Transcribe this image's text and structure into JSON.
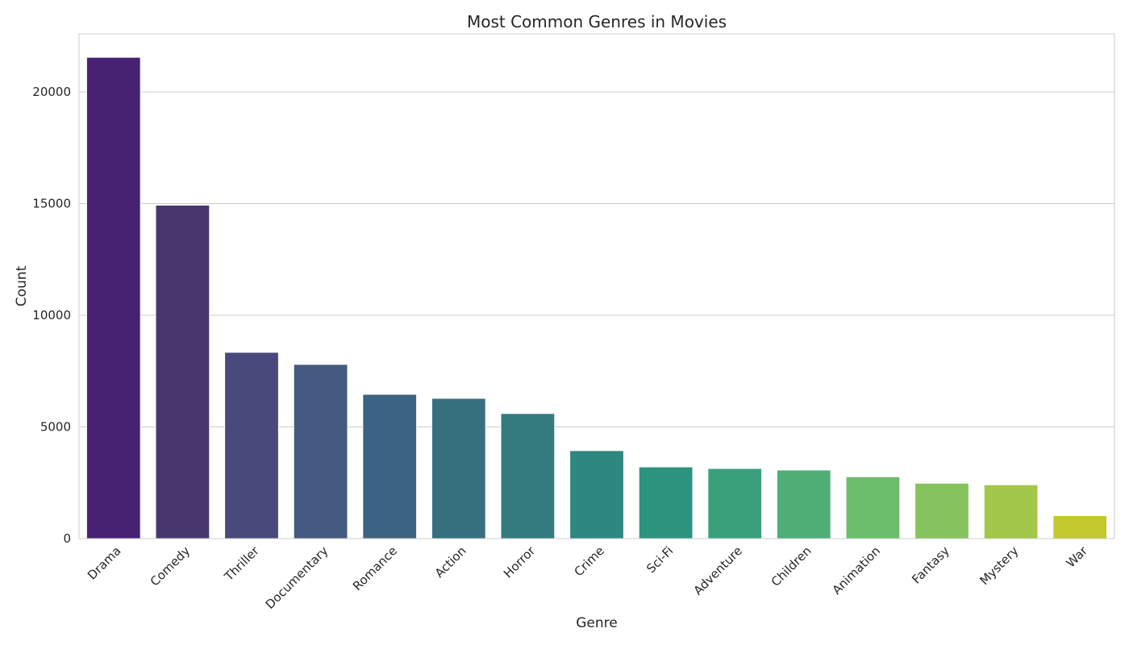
{
  "chart_data": {
    "type": "bar",
    "title": "Most Common Genres in Movies",
    "xlabel": "Genre",
    "ylabel": "Count",
    "ylim": [
      0,
      22600
    ],
    "yticks": [
      0,
      5000,
      10000,
      15000,
      20000
    ],
    "grid": true,
    "categories": [
      "Drama",
      "Comedy",
      "Thriller",
      "Documentary",
      "Romance",
      "Action",
      "Horror",
      "Crime",
      "Sci-Fi",
      "Adventure",
      "Children",
      "Animation",
      "Fantasy",
      "Mystery",
      "War"
    ],
    "values": [
      21550,
      14930,
      8340,
      7800,
      6460,
      6280,
      5600,
      3940,
      3210,
      3140,
      3070,
      2770,
      2480,
      2410,
      1030
    ],
    "colors": [
      "#482173",
      "#48366f",
      "#474a7b",
      "#445a80",
      "#3c6482",
      "#377180",
      "#337b7e",
      "#2e8780",
      "#2c937f",
      "#3aa07b",
      "#4eae76",
      "#6cbd6b",
      "#86c35e",
      "#a3c74a",
      "#c3c92c"
    ]
  }
}
